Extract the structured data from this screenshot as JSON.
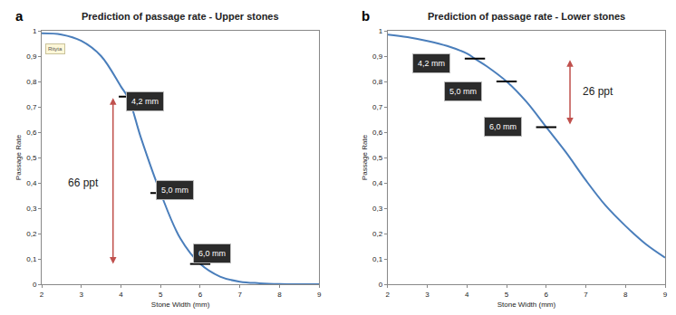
{
  "chart_data": [
    {
      "type": "line",
      "panel": "a",
      "title": "Prediction of passage rate - Upper stones",
      "x_label": "Stone Width (mm)",
      "y_label": "Passage Rate",
      "xlim": [
        2,
        9
      ],
      "xticks": [
        2,
        3,
        4,
        5,
        6,
        7,
        8,
        9
      ],
      "ylim": [
        0,
        1
      ],
      "yticks": [
        0,
        {
          "value": 0.1,
          "label": "0,1"
        },
        {
          "value": 0.2,
          "label": "0,2"
        },
        {
          "value": 0.3,
          "label": "0,3"
        },
        {
          "value": 0.4,
          "label": "0,4"
        },
        {
          "value": 0.5,
          "label": "0,5"
        },
        {
          "value": 0.6,
          "label": "0,6"
        },
        {
          "value": 0.7,
          "label": "0,7"
        },
        {
          "value": 0.8,
          "label": "0,8"
        },
        {
          "value": 0.9,
          "label": "0,9"
        },
        1
      ],
      "grid": false,
      "series": [
        {
          "type": "line",
          "color": "#4a7ebb",
          "x": [
            2,
            2.5,
            3,
            3.5,
            4,
            4.2,
            4.5,
            5,
            5.5,
            6,
            6.5,
            7,
            7.5,
            8,
            8.5,
            9
          ],
          "values": [
            0.99,
            0.985,
            0.96,
            0.9,
            0.78,
            0.73,
            0.58,
            0.36,
            0.18,
            0.08,
            0.03,
            0.01,
            0.004,
            0.001,
            0,
            0
          ]
        },
        {
          "type": "scatter",
          "marker": "line-ew",
          "color": "#000000",
          "x": [
            4.2,
            5,
            6
          ],
          "values": [
            0.74,
            0.36,
            0.08
          ]
        }
      ],
      "annotations": [
        {
          "text": "Rityta",
          "x": 2.35,
          "y": 0.93,
          "style": "tag"
        },
        {
          "text": "4,2 mm",
          "x": 4.6,
          "y": 0.72,
          "style": "image"
        },
        {
          "text": "5,0 mm",
          "x": 5.35,
          "y": 0.37,
          "style": "image"
        },
        {
          "text": "6,0 mm",
          "x": 6.3,
          "y": 0.12,
          "style": "image"
        },
        {
          "text": "66 ppt",
          "x": 3.05,
          "y": 0.4,
          "style": "plain"
        }
      ],
      "arrow": {
        "x": 3.8,
        "from": 0.74,
        "to": 0.08,
        "color": "#c0504d"
      }
    },
    {
      "type": "line",
      "panel": "b",
      "title": "Prediction of passage rate - Lower stones",
      "x_label": "Stone Width (mm)",
      "y_label": "Passage Rate",
      "xlim": [
        2,
        9
      ],
      "xticks": [
        2,
        3,
        4,
        5,
        6,
        7,
        8,
        9
      ],
      "ylim": [
        0,
        1
      ],
      "yticks": [
        0,
        {
          "value": 0.1,
          "label": "0,1"
        },
        {
          "value": 0.2,
          "label": "0,2"
        },
        {
          "value": 0.3,
          "label": "0,3"
        },
        {
          "value": 0.4,
          "label": "0,4"
        },
        {
          "value": 0.5,
          "label": "0,5"
        },
        {
          "value": 0.6,
          "label": "0,6"
        },
        {
          "value": 0.7,
          "label": "0,7"
        },
        {
          "value": 0.8,
          "label": "0,8"
        },
        {
          "value": 0.9,
          "label": "0,9"
        },
        1
      ],
      "grid": false,
      "series": [
        {
          "type": "line",
          "color": "#4a7ebb",
          "x": [
            2,
            2.5,
            3,
            3.5,
            4,
            4.2,
            4.5,
            5,
            5.5,
            6,
            6.5,
            7,
            7.5,
            8,
            8.5,
            9
          ],
          "values": [
            0.985,
            0.975,
            0.96,
            0.94,
            0.91,
            0.89,
            0.86,
            0.8,
            0.72,
            0.62,
            0.52,
            0.41,
            0.31,
            0.23,
            0.16,
            0.105
          ]
        },
        {
          "type": "scatter",
          "marker": "line-ew",
          "color": "#000000",
          "x": [
            4.2,
            5,
            6
          ],
          "values": [
            0.89,
            0.8,
            0.62
          ]
        }
      ],
      "annotations": [
        {
          "text": "4,2 mm",
          "x": 3.1,
          "y": 0.87,
          "style": "image"
        },
        {
          "text": "5,0 mm",
          "x": 3.9,
          "y": 0.76,
          "style": "image"
        },
        {
          "text": "6,0 mm",
          "x": 4.9,
          "y": 0.62,
          "style": "image"
        },
        {
          "text": "26 ppt",
          "x": 7.3,
          "y": 0.76,
          "style": "plain"
        }
      ],
      "arrow": {
        "x": 6.6,
        "from": 0.89,
        "to": 0.63,
        "color": "#c0504d"
      }
    }
  ]
}
